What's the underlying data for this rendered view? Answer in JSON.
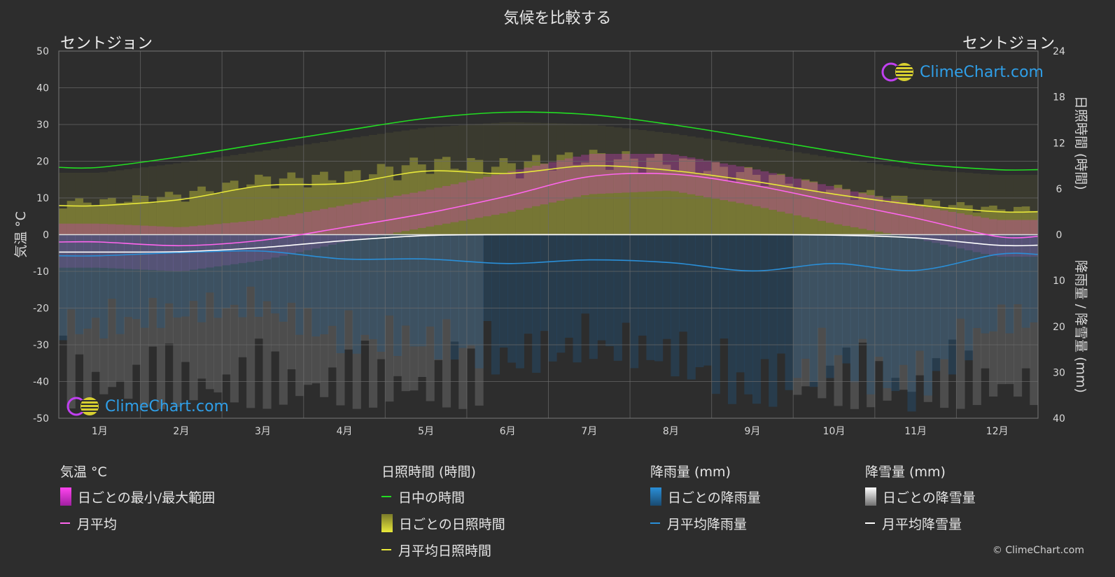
{
  "title": "気候を比較する",
  "location_left": "セントジョン",
  "location_right": "セントジョン",
  "copyright": "© ClimeChart.com",
  "logo_text": "ClimeChart.com",
  "colors": {
    "background": "#2d2d2d",
    "daylight": "#22dd22",
    "sunshine": "#e8e83a",
    "temp_avg": "#ff66ee",
    "rain": "#2a8fd8",
    "snow": "#ffffff",
    "temp_range": "#d040c0"
  },
  "legend": {
    "temperature": {
      "header": "気温 °C",
      "range_label": "日ごとの最小/最大範囲",
      "avg_label": "月平均"
    },
    "sunshine": {
      "header": "日照時間 (時間)",
      "daylight_label": "日中の時間",
      "daily_label": "日ごとの日照時間",
      "avg_label": "月平均日照時間"
    },
    "rain": {
      "header": "降雨量 (mm)",
      "daily_label": "日ごとの降雨量",
      "avg_label": "月平均降雨量"
    },
    "snow": {
      "header": "降雪量 (mm)",
      "daily_label": "日ごとの降雪量",
      "avg_label": "月平均降雪量"
    }
  },
  "chart_data": {
    "type": "line",
    "categories": [
      "1月",
      "2月",
      "3月",
      "4月",
      "5月",
      "6月",
      "7月",
      "8月",
      "9月",
      "10月",
      "11月",
      "12月"
    ],
    "left_axis": {
      "label": "気温 °C",
      "ylim": [
        -50,
        50
      ],
      "ticks": [
        50,
        40,
        30,
        20,
        10,
        0,
        -10,
        -20,
        -30,
        -40,
        -50
      ]
    },
    "right_axis_top": {
      "label": "日照時間 (時間)",
      "ylim": [
        0,
        24
      ],
      "ticks": [
        24,
        18,
        12,
        6,
        0
      ]
    },
    "right_axis_bottom": {
      "label": "降雨量 / 降雪量 (mm)",
      "ylim": [
        0,
        40
      ],
      "ticks": [
        0,
        10,
        20,
        30,
        40
      ]
    },
    "grid": true,
    "series": [
      {
        "name": "日中の時間",
        "axis": "sunshine",
        "values": [
          8.8,
          10.2,
          11.9,
          13.6,
          15.2,
          16.0,
          15.7,
          14.4,
          12.7,
          10.9,
          9.3,
          8.5
        ]
      },
      {
        "name": "月平均日照時間",
        "axis": "sunshine",
        "values": [
          3.8,
          4.6,
          6.4,
          6.7,
          8.3,
          8.0,
          9.0,
          8.4,
          7.0,
          5.3,
          3.9,
          3.0
        ]
      },
      {
        "name": "月平均",
        "axis": "temperature",
        "values": [
          -2.0,
          -3.0,
          -1.5,
          2.0,
          5.8,
          10.5,
          15.8,
          16.5,
          13.5,
          9.0,
          4.5,
          -0.5
        ]
      },
      {
        "name": "月平均降雨量",
        "axis": "precipitation",
        "values": [
          4.6,
          3.9,
          3.6,
          5.3,
          5.3,
          6.3,
          5.5,
          6.1,
          7.9,
          6.3,
          7.8,
          4.3
        ]
      },
      {
        "name": "月平均降雪量",
        "axis": "precipitation",
        "values": [
          3.8,
          3.7,
          2.8,
          1.3,
          0.2,
          0.0,
          0.0,
          0.0,
          0.0,
          0.1,
          0.7,
          2.3
        ]
      }
    ],
    "temp_range": {
      "name": "日ごとの最小/最大範囲",
      "min": [
        -9,
        -10,
        -7,
        -2,
        2,
        6,
        11,
        12,
        8,
        3,
        -1,
        -6
      ],
      "max": [
        3,
        2,
        4,
        8,
        12,
        17,
        22,
        22,
        18,
        13,
        8,
        4
      ]
    }
  }
}
